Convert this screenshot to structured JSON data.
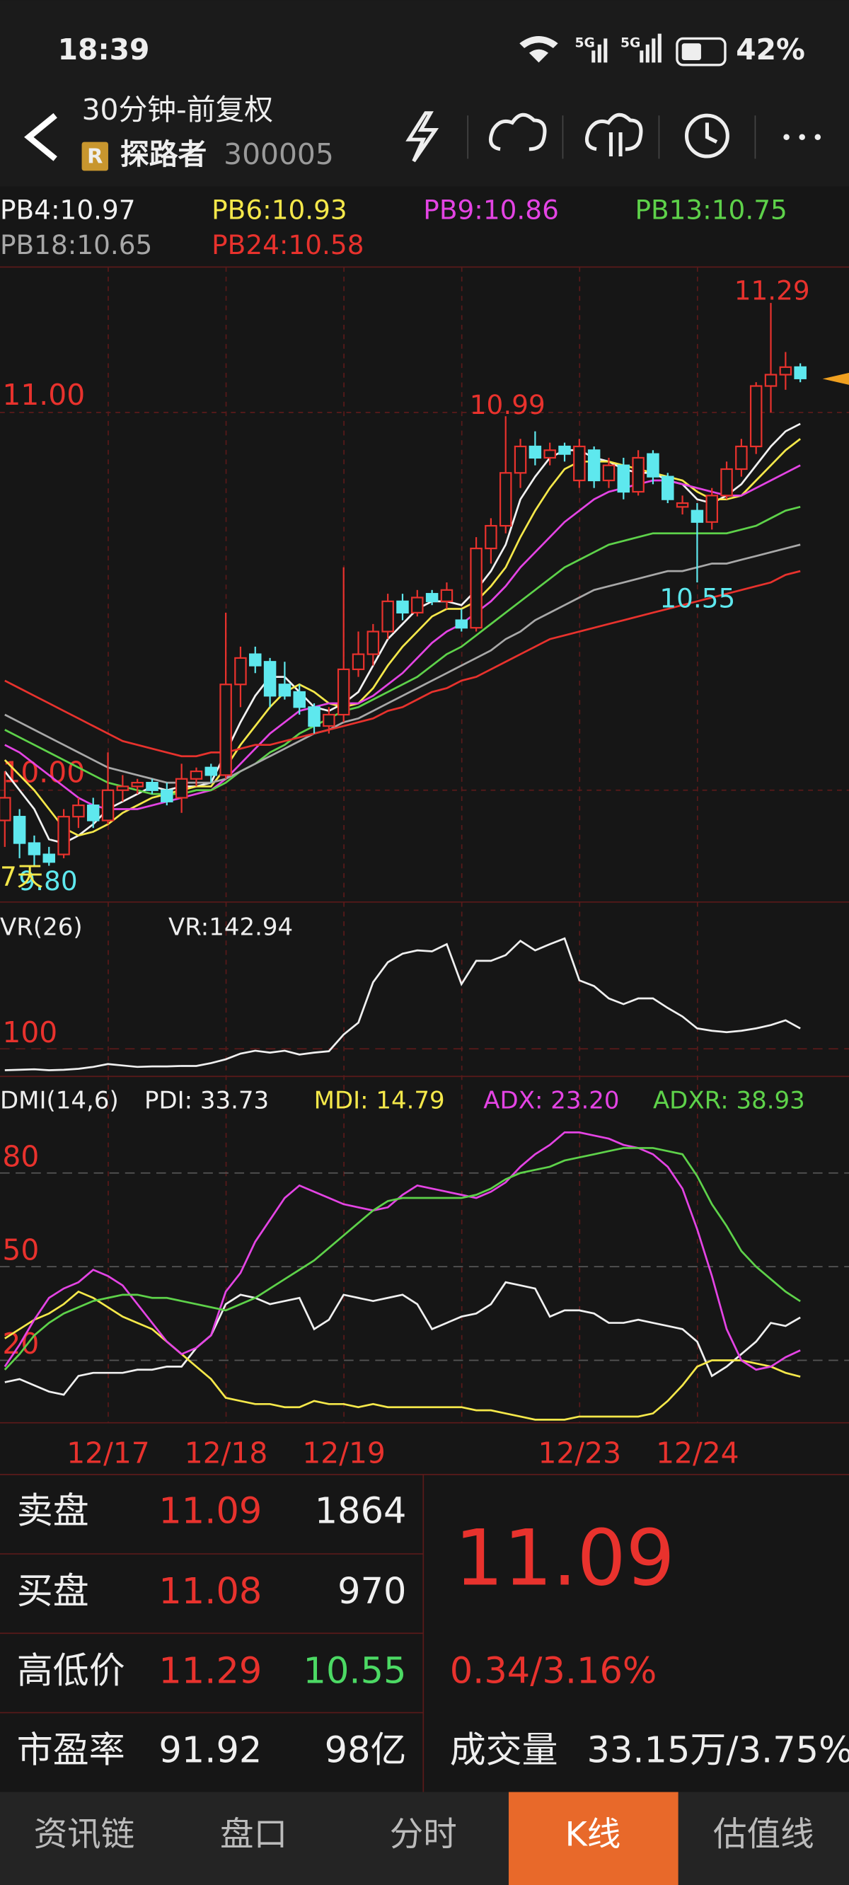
{
  "status_bar": {
    "time": "18:39",
    "signals": [
      "5G",
      "5G"
    ],
    "battery": "42%"
  },
  "header": {
    "title": "30分钟-前复权",
    "badge": "R",
    "name": "探路者",
    "code": "300005"
  },
  "kline": {
    "type": "candlestick",
    "ma": [
      {
        "label": "PB4:10.97",
        "color": "#f2f2f2",
        "values": [
          10.05,
          10.0,
          9.95,
          9.87,
          9.86,
          9.88,
          9.91,
          9.95,
          9.97,
          9.99,
          10.01,
          10.0,
          10.01,
          10.01,
          10.02,
          10.1,
          10.18,
          10.25,
          10.3,
          10.3,
          10.26,
          10.22,
          10.21,
          10.23,
          10.26,
          10.33,
          10.4,
          10.44,
          10.48,
          10.5,
          10.5,
          10.49,
          10.53,
          10.58,
          10.65,
          10.77,
          10.83,
          10.88,
          10.9,
          10.9,
          10.88,
          10.87,
          10.85,
          10.84,
          10.84,
          10.82,
          10.81,
          10.77,
          10.76,
          10.78,
          10.81,
          10.86,
          10.91,
          10.95,
          10.97
        ]
      },
      {
        "label": "PB6:10.93",
        "color": "#f5e84a",
        "values": [
          10.08,
          10.04,
          10.0,
          9.95,
          9.9,
          9.88,
          9.89,
          9.91,
          9.94,
          9.96,
          9.98,
          9.99,
          10.0,
          10.01,
          10.01,
          10.06,
          10.12,
          10.17,
          10.22,
          10.26,
          10.28,
          10.26,
          10.23,
          10.22,
          10.23,
          10.27,
          10.33,
          10.38,
          10.42,
          10.46,
          10.48,
          10.48,
          10.5,
          10.54,
          10.59,
          10.67,
          10.74,
          10.8,
          10.85,
          10.87,
          10.87,
          10.87,
          10.86,
          10.85,
          10.84,
          10.83,
          10.82,
          10.79,
          10.77,
          10.77,
          10.78,
          10.82,
          10.86,
          10.9,
          10.93
        ]
      },
      {
        "label": "PB9:10.86",
        "color": "#e444e4",
        "values": [
          10.12,
          10.1,
          10.07,
          10.04,
          10.01,
          9.98,
          9.96,
          9.95,
          9.95,
          9.95,
          9.96,
          9.97,
          9.98,
          9.99,
          10.0,
          10.03,
          10.07,
          10.11,
          10.15,
          10.18,
          10.21,
          10.22,
          10.23,
          10.23,
          10.23,
          10.25,
          10.28,
          10.31,
          10.35,
          10.39,
          10.42,
          10.44,
          10.47,
          10.5,
          10.54,
          10.59,
          10.63,
          10.67,
          10.71,
          10.74,
          10.77,
          10.79,
          10.8,
          10.81,
          10.82,
          10.82,
          10.81,
          10.8,
          10.79,
          10.78,
          10.78,
          10.8,
          10.82,
          10.84,
          10.86
        ]
      },
      {
        "label": "PB13:10.75",
        "color": "#5ed24a",
        "values": [
          10.16,
          10.14,
          10.12,
          10.1,
          10.08,
          10.06,
          10.04,
          10.02,
          10.01,
          10.0,
          9.99,
          9.99,
          9.99,
          10.0,
          10.0,
          10.02,
          10.05,
          10.07,
          10.1,
          10.12,
          10.15,
          10.17,
          10.19,
          10.21,
          10.22,
          10.24,
          10.26,
          10.28,
          10.3,
          10.33,
          10.36,
          10.38,
          10.41,
          10.44,
          10.47,
          10.5,
          10.53,
          10.56,
          10.59,
          10.61,
          10.63,
          10.65,
          10.66,
          10.67,
          10.68,
          10.68,
          10.68,
          10.68,
          10.68,
          10.68,
          10.69,
          10.7,
          10.72,
          10.74,
          10.75
        ]
      },
      {
        "label": "PB18:10.65",
        "color": "#a8a8a8",
        "values": [
          10.2,
          10.18,
          10.16,
          10.14,
          10.12,
          10.1,
          10.08,
          10.06,
          10.05,
          10.04,
          10.03,
          10.02,
          10.02,
          10.02,
          10.02,
          10.03,
          10.05,
          10.07,
          10.09,
          10.11,
          10.13,
          10.15,
          10.16,
          10.18,
          10.19,
          10.21,
          10.23,
          10.25,
          10.27,
          10.29,
          10.31,
          10.33,
          10.35,
          10.37,
          10.4,
          10.42,
          10.45,
          10.47,
          10.49,
          10.51,
          10.53,
          10.54,
          10.55,
          10.56,
          10.57,
          10.58,
          10.58,
          10.59,
          10.6,
          10.6,
          10.61,
          10.62,
          10.63,
          10.64,
          10.65
        ]
      },
      {
        "label": "PB24:10.58",
        "color": "#e8322d",
        "values": [
          10.29,
          10.27,
          10.25,
          10.23,
          10.21,
          10.19,
          10.17,
          10.15,
          10.13,
          10.12,
          10.11,
          10.1,
          10.09,
          10.09,
          10.1,
          10.1,
          10.11,
          10.12,
          10.12,
          10.13,
          10.14,
          10.15,
          10.16,
          10.17,
          10.18,
          10.19,
          10.21,
          10.22,
          10.24,
          10.26,
          10.27,
          10.29,
          10.3,
          10.32,
          10.34,
          10.36,
          10.38,
          10.4,
          10.41,
          10.42,
          10.43,
          10.44,
          10.45,
          10.46,
          10.47,
          10.48,
          10.49,
          10.5,
          10.51,
          10.52,
          10.53,
          10.54,
          10.55,
          10.57,
          10.58
        ]
      }
    ],
    "candles": [
      [
        9.92,
        10.05,
        9.85,
        9.98
      ],
      [
        9.93,
        9.95,
        9.82,
        9.86
      ],
      [
        9.86,
        9.88,
        9.8,
        9.83
      ],
      [
        9.83,
        9.85,
        9.8,
        9.81
      ],
      [
        9.83,
        9.95,
        9.82,
        9.93
      ],
      [
        9.93,
        9.98,
        9.9,
        9.96
      ],
      [
        9.96,
        9.98,
        9.9,
        9.92
      ],
      [
        9.92,
        10.1,
        9.91,
        10.0
      ],
      [
        10.0,
        10.04,
        9.97,
        10.01
      ],
      [
        10.01,
        10.03,
        9.99,
        10.02
      ],
      [
        10.02,
        10.03,
        9.99,
        10.0
      ],
      [
        10.0,
        10.02,
        9.96,
        9.97
      ],
      [
        9.98,
        10.07,
        9.94,
        10.03
      ],
      [
        10.03,
        10.06,
        10.01,
        10.05
      ],
      [
        10.06,
        10.07,
        10.02,
        10.04
      ],
      [
        10.04,
        10.47,
        10.03,
        10.28
      ],
      [
        10.28,
        10.38,
        10.22,
        10.35
      ],
      [
        10.36,
        10.38,
        10.31,
        10.33
      ],
      [
        10.34,
        10.35,
        10.22,
        10.25
      ],
      [
        10.28,
        10.34,
        10.24,
        10.25
      ],
      [
        10.26,
        10.28,
        10.2,
        10.22
      ],
      [
        10.22,
        10.23,
        10.15,
        10.17
      ],
      [
        10.17,
        10.22,
        10.15,
        10.2
      ],
      [
        10.2,
        10.59,
        10.18,
        10.32
      ],
      [
        10.32,
        10.42,
        10.3,
        10.36
      ],
      [
        10.36,
        10.44,
        10.33,
        10.42
      ],
      [
        10.42,
        10.52,
        10.4,
        10.5
      ],
      [
        10.5,
        10.52,
        10.45,
        10.47
      ],
      [
        10.47,
        10.53,
        10.46,
        10.51
      ],
      [
        10.52,
        10.53,
        10.49,
        10.5
      ],
      [
        10.5,
        10.55,
        10.48,
        10.53
      ],
      [
        10.45,
        10.48,
        10.42,
        10.43
      ],
      [
        10.43,
        10.67,
        10.42,
        10.64
      ],
      [
        10.64,
        10.72,
        10.6,
        10.7
      ],
      [
        10.7,
        10.99,
        10.68,
        10.84
      ],
      [
        10.84,
        10.93,
        10.8,
        10.91
      ],
      [
        10.91,
        10.95,
        10.86,
        10.88
      ],
      [
        10.88,
        10.92,
        10.86,
        10.9
      ],
      [
        10.91,
        10.92,
        10.87,
        10.89
      ],
      [
        10.82,
        10.93,
        10.8,
        10.91
      ],
      [
        10.9,
        10.91,
        10.8,
        10.82
      ],
      [
        10.82,
        10.88,
        10.8,
        10.86
      ],
      [
        10.86,
        10.88,
        10.77,
        10.79
      ],
      [
        10.79,
        10.9,
        10.78,
        10.88
      ],
      [
        10.89,
        10.9,
        10.81,
        10.83
      ],
      [
        10.83,
        10.84,
        10.76,
        10.77
      ],
      [
        10.75,
        10.78,
        10.73,
        10.76
      ],
      [
        10.74,
        10.76,
        10.55,
        10.71
      ],
      [
        10.71,
        10.8,
        10.69,
        10.78
      ],
      [
        10.78,
        10.87,
        10.77,
        10.85
      ],
      [
        10.85,
        10.93,
        10.83,
        10.91
      ],
      [
        10.91,
        11.08,
        10.89,
        11.07
      ],
      [
        11.07,
        11.29,
        11.0,
        11.1
      ],
      [
        11.1,
        11.16,
        11.06,
        11.12
      ],
      [
        11.12,
        11.13,
        11.08,
        11.09
      ]
    ],
    "up_color": "#e8322d",
    "down_color": "#5ee8ee",
    "ylim": [
      9.704,
      11.385
    ],
    "yticks": [
      {
        "value": 11,
        "label": "11.00"
      },
      {
        "value": 10,
        "label": "10.00"
      }
    ],
    "annotations": [
      "11.29",
      "10.99",
      "10.55",
      "9.80",
      "7天"
    ],
    "date_labels": [
      "12/17",
      "12/18",
      "12/19",
      null,
      "12/23",
      "12/24"
    ]
  },
  "vr": {
    "type": "line",
    "title": "VR(26)",
    "value_label": "VR:142.94",
    "color": "#f0f0f0",
    "values": [
      55,
      56,
      57,
      55,
      56,
      58,
      62,
      68,
      65,
      62,
      63,
      63,
      64,
      64,
      70,
      78,
      90,
      96,
      92,
      96,
      88,
      92,
      95,
      130,
      155,
      240,
      282,
      300,
      307,
      305,
      320,
      236,
      285,
      285,
      297,
      327,
      307,
      320,
      332,
      244,
      232,
      206,
      194,
      206,
      206,
      186,
      168,
      143,
      138,
      135,
      138,
      143,
      150,
      160,
      142.94
    ],
    "ylim": [
      42,
      396
    ],
    "yticks": [
      100
    ]
  },
  "dmi": {
    "type": "line",
    "title": "DMI(14,6)",
    "ylim": [
      0,
      109
    ],
    "yticks": [
      80,
      50,
      20
    ],
    "series": [
      {
        "name": "PDI: 33.73",
        "color": "#f0f0f0",
        "values": [
          13,
          14,
          12,
          10,
          9,
          15,
          16,
          16,
          16,
          17,
          17,
          18,
          18,
          24,
          28,
          38,
          41,
          40,
          38,
          39,
          40,
          30,
          33,
          41,
          40,
          39,
          40,
          41,
          38,
          30,
          32,
          34,
          35,
          38,
          45,
          44,
          43,
          34,
          36,
          36,
          35,
          32,
          32,
          33,
          32,
          31,
          30,
          26,
          15,
          18,
          22,
          26,
          32,
          31,
          33.73
        ]
      },
      {
        "name": "MDI: 14.79",
        "color": "#f5e84a",
        "values": [
          27,
          30,
          33,
          35,
          38,
          42,
          40,
          37,
          34,
          32,
          30,
          26,
          22,
          18,
          14,
          8,
          7,
          6,
          6,
          5,
          5,
          7,
          6,
          6,
          5,
          6,
          5,
          5,
          5,
          5,
          5,
          5,
          4,
          4,
          3,
          2,
          1,
          1,
          1,
          2,
          2,
          2,
          2,
          2,
          3,
          7,
          12,
          18,
          20,
          20,
          20,
          19,
          18,
          16,
          14.79
        ]
      },
      {
        "name": "ADX: 23.20",
        "color": "#e444e4",
        "values": [
          18,
          25,
          33,
          40,
          43,
          45,
          49,
          47,
          44,
          38,
          32,
          26,
          22,
          24,
          28,
          42,
          48,
          58,
          65,
          72,
          76,
          74,
          72,
          70,
          69,
          68,
          69,
          73,
          76,
          75,
          74,
          73,
          72,
          74,
          77,
          82,
          86,
          89,
          93,
          93,
          92,
          91,
          89,
          88,
          86,
          82,
          75,
          62,
          47,
          30,
          20,
          17,
          18,
          21,
          23.2
        ]
      },
      {
        "name": "ADXR: 38.93",
        "color": "#5ed24a",
        "values": [
          17,
          22,
          28,
          32,
          35,
          37,
          39,
          40,
          41,
          41,
          40,
          40,
          39,
          38,
          37,
          36,
          38,
          40,
          43,
          46,
          49,
          52,
          56,
          60,
          64,
          68,
          71,
          72,
          72,
          72,
          72,
          72,
          73,
          75,
          78,
          80,
          81,
          82,
          84,
          85,
          86,
          87,
          88,
          88,
          88,
          87,
          86,
          79,
          70,
          63,
          55,
          50,
          46,
          42,
          38.93
        ]
      }
    ]
  },
  "quote": {
    "rows": [
      [
        "卖盘",
        "11.09",
        "1864"
      ],
      [
        "买盘",
        "11.08",
        "970"
      ],
      [
        "高低价",
        "11.29",
        "10.55"
      ],
      [
        "市盈率",
        "91.92",
        "98亿"
      ]
    ],
    "price": "11.09",
    "change": "0.34/3.16%",
    "volume_label": "成交量",
    "volume": "33.15万/3.75%"
  },
  "tabs": [
    "资讯链",
    "盘口",
    "分时",
    "K线",
    "估值线"
  ],
  "active_tab": "K线"
}
